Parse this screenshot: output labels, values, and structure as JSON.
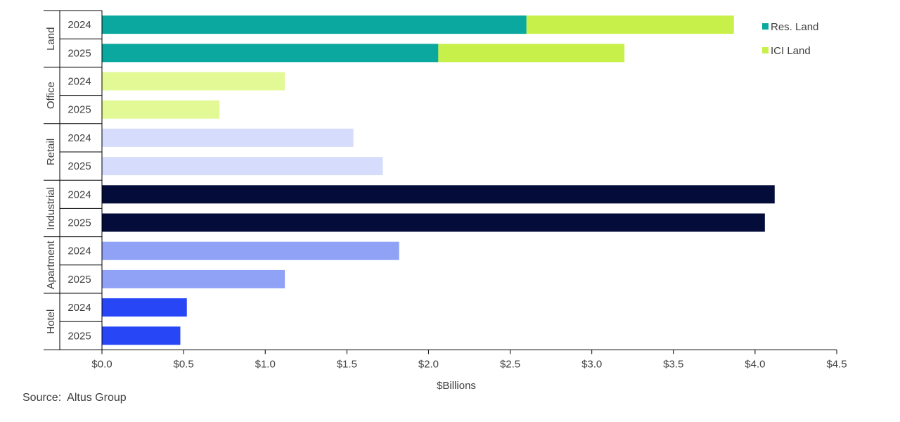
{
  "chart_data": {
    "type": "bar",
    "orientation": "horizontal",
    "stacked": true,
    "groups": [
      {
        "name": "Land",
        "categories": [
          "2024",
          "2025"
        ]
      },
      {
        "name": "Office",
        "categories": [
          "2024",
          "2025"
        ]
      },
      {
        "name": "Retail",
        "categories": [
          "2024",
          "2025"
        ]
      },
      {
        "name": "Industrial",
        "categories": [
          "2024",
          "2025"
        ]
      },
      {
        "name": "Apartment",
        "categories": [
          "2024",
          "2025"
        ]
      },
      {
        "name": "Hotel",
        "categories": [
          "2024",
          "2025"
        ]
      }
    ],
    "rows": [
      {
        "group": "Land",
        "year": "2024",
        "segments": [
          {
            "series": "Res. Land",
            "value": 2.6,
            "color": "#0aa89e"
          },
          {
            "series": "ICI Land",
            "value": 1.27,
            "color": "#c8f04a"
          }
        ]
      },
      {
        "group": "Land",
        "year": "2025",
        "segments": [
          {
            "series": "Res. Land",
            "value": 2.06,
            "color": "#0aa89e"
          },
          {
            "series": "ICI Land",
            "value": 1.14,
            "color": "#c8f04a"
          }
        ]
      },
      {
        "group": "Office",
        "year": "2024",
        "segments": [
          {
            "value": 1.12,
            "color": "#e2f996"
          }
        ]
      },
      {
        "group": "Office",
        "year": "2025",
        "segments": [
          {
            "value": 0.72,
            "color": "#e2f996"
          }
        ]
      },
      {
        "group": "Retail",
        "year": "2024",
        "segments": [
          {
            "value": 1.54,
            "color": "#d6dcfb"
          }
        ]
      },
      {
        "group": "Retail",
        "year": "2025",
        "segments": [
          {
            "value": 1.72,
            "color": "#d6dcfb"
          }
        ]
      },
      {
        "group": "Industrial",
        "year": "2024",
        "segments": [
          {
            "value": 4.12,
            "color": "#040c3a"
          }
        ]
      },
      {
        "group": "Industrial",
        "year": "2025",
        "segments": [
          {
            "value": 4.06,
            "color": "#040c3a"
          }
        ]
      },
      {
        "group": "Apartment",
        "year": "2024",
        "segments": [
          {
            "value": 1.82,
            "color": "#8fa2f6"
          }
        ]
      },
      {
        "group": "Apartment",
        "year": "2025",
        "segments": [
          {
            "value": 1.12,
            "color": "#8fa2f6"
          }
        ]
      },
      {
        "group": "Hotel",
        "year": "2024",
        "segments": [
          {
            "value": 0.52,
            "color": "#2747f7"
          }
        ]
      },
      {
        "group": "Hotel",
        "year": "2025",
        "segments": [
          {
            "value": 0.48,
            "color": "#2747f7"
          }
        ]
      }
    ],
    "legend": [
      {
        "name": "Res. Land",
        "color": "#0aa89e"
      },
      {
        "name": "ICI Land",
        "color": "#c8f04a"
      }
    ],
    "legend_position": "top-right",
    "xlabel": "$Billions",
    "xlim": [
      0,
      4.5
    ],
    "xticks": [
      0,
      0.5,
      1.0,
      1.5,
      2.0,
      2.5,
      3.0,
      3.5,
      4.0,
      4.5
    ],
    "xtick_labels": [
      "$0.0",
      "$0.5",
      "$1.0",
      "$1.5",
      "$2.0",
      "$2.5",
      "$3.0",
      "$3.5",
      "$4.0",
      "$4.5"
    ],
    "grid": false
  },
  "source_text": "Source:  Altus Group"
}
